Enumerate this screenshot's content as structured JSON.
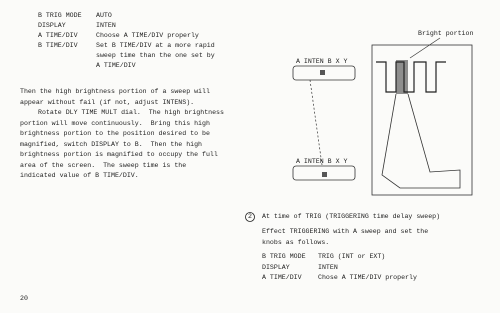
{
  "settings_top": [
    {
      "control": "B TRIG MODE",
      "setting": [
        "AUTO"
      ]
    },
    {
      "control": "DISPLAY",
      "setting": [
        "INTEN"
      ]
    },
    {
      "control": "A TIME/DIV",
      "setting": [
        "Choose A TIME/DIV properly"
      ]
    },
    {
      "control": "B TIME/DIV",
      "setting": [
        "Set B TIME/DIV at a more rapid",
        "sweep time than the one set by",
        "A TIME/DIV"
      ]
    }
  ],
  "paragraphs": [
    [
      "Then the high brightness portion of a sweep will",
      "appear without fail (if not, adjust INTENS)."
    ],
    [
      "Rotate DLY TIME MULT dial.  The high brightness",
      "portion will move continuously.  Bring this high",
      "brightness portion to the position desired to be",
      "magnified, switch DISPLAY to B.  Then the high",
      "brightness portion is magnified to occupy the full",
      "area of the screen.  The sweep time is the",
      "indicated value of B TIME/DIV."
    ]
  ],
  "figure": {
    "callout": "Bright portion",
    "panel_upper": "A INTEN B X Y",
    "panel_lower": "A INTEN B X Y"
  },
  "item": {
    "number": "2",
    "heading": "At time of TRIG (TRIGGERING time delay sweep)",
    "text": [
      "Effect TRIGGERING with A sweep and set the",
      "knobs as follows."
    ],
    "settings": [
      {
        "control": "B TRIG MODE",
        "setting": "TRIG (INT or EXT)"
      },
      {
        "control": "DISPLAY",
        "setting": "INTEN"
      },
      {
        "control": "A TIME/DIV",
        "setting": "Chose A TIME/DIV properly"
      }
    ]
  },
  "page_number": "20"
}
